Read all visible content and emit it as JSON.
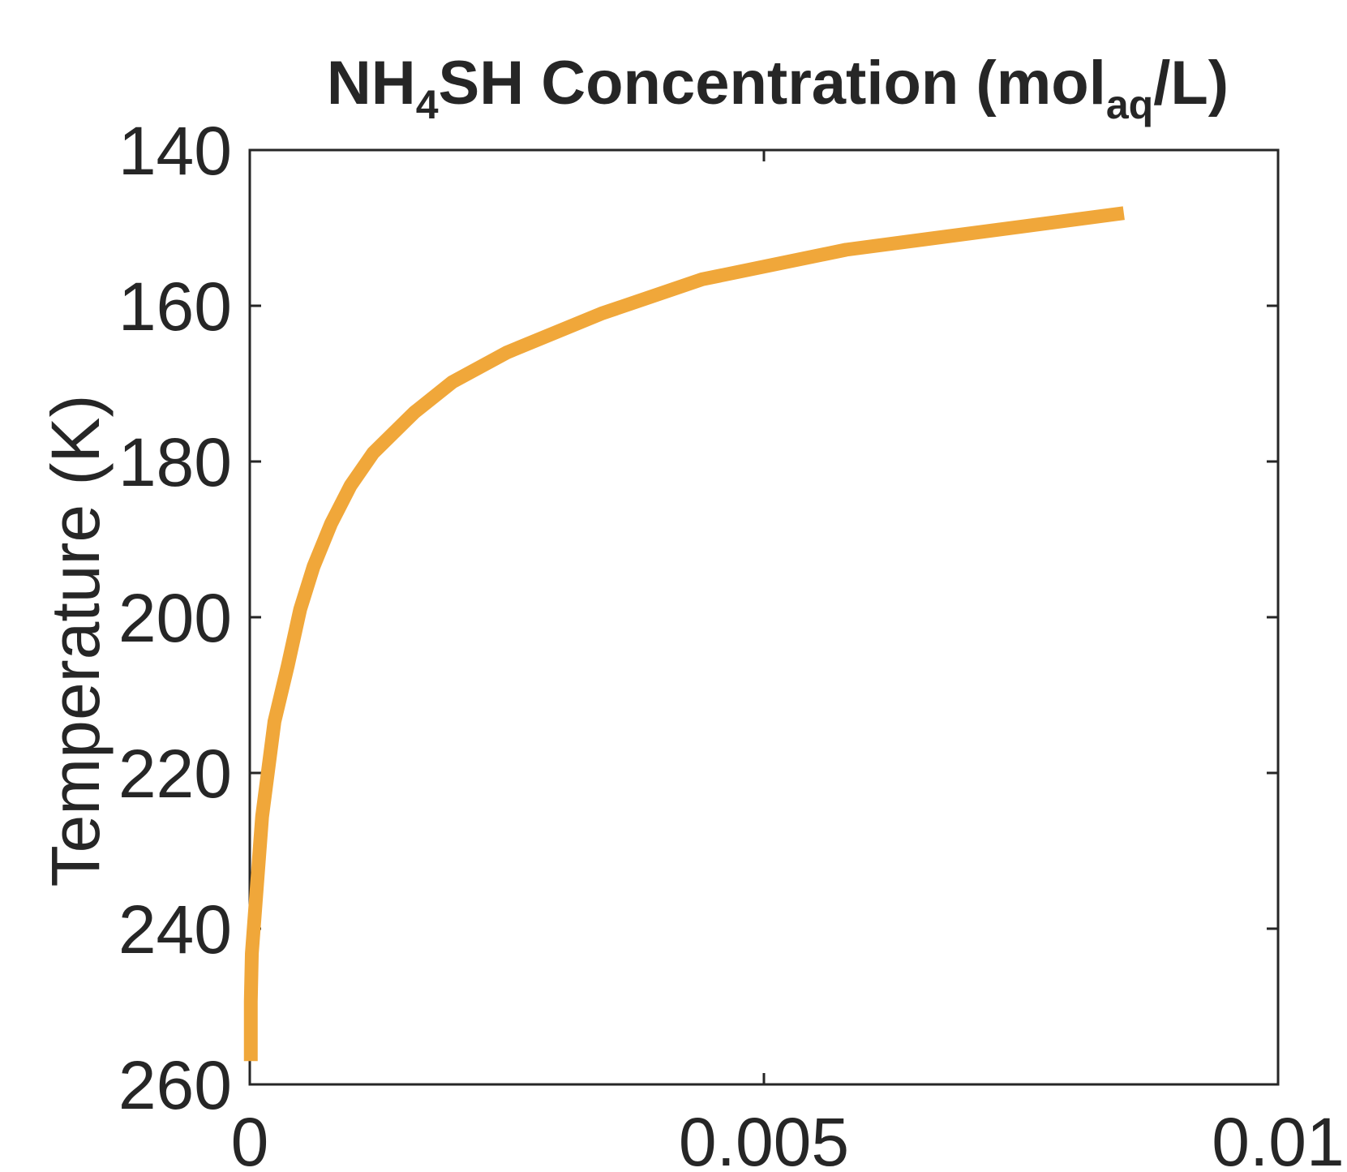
{
  "chart_data": {
    "type": "line",
    "title": [
      "NH",
      "4",
      "SH Concentration (mol",
      "aq",
      "/L)"
    ],
    "ylabel": "Temperature (K)",
    "series": [
      {
        "color": "#f0a73a",
        "x": [
          1e-05,
          1e-05,
          2e-05,
          0.00012,
          0.00024,
          0.00037,
          0.00049,
          0.00062,
          0.00079,
          0.00098,
          0.0012,
          0.0016,
          0.00197,
          0.0025,
          0.00342,
          0.0044,
          0.0058,
          0.0085
        ],
        "values": [
          257,
          249.3,
          243.2,
          225.6,
          213.4,
          206.2,
          199,
          193.5,
          188,
          183.1,
          178.9,
          173.7,
          169.8,
          166,
          161,
          156.6,
          152.8,
          148.1
        ]
      }
    ],
    "xlim": [
      0,
      0.01
    ],
    "xticks": [
      0,
      0.005,
      0.01
    ],
    "ylim": [
      140,
      260
    ],
    "yticks": [
      140,
      160,
      180,
      200,
      220,
      240,
      260
    ],
    "y_reversed": true,
    "grid": false
  }
}
